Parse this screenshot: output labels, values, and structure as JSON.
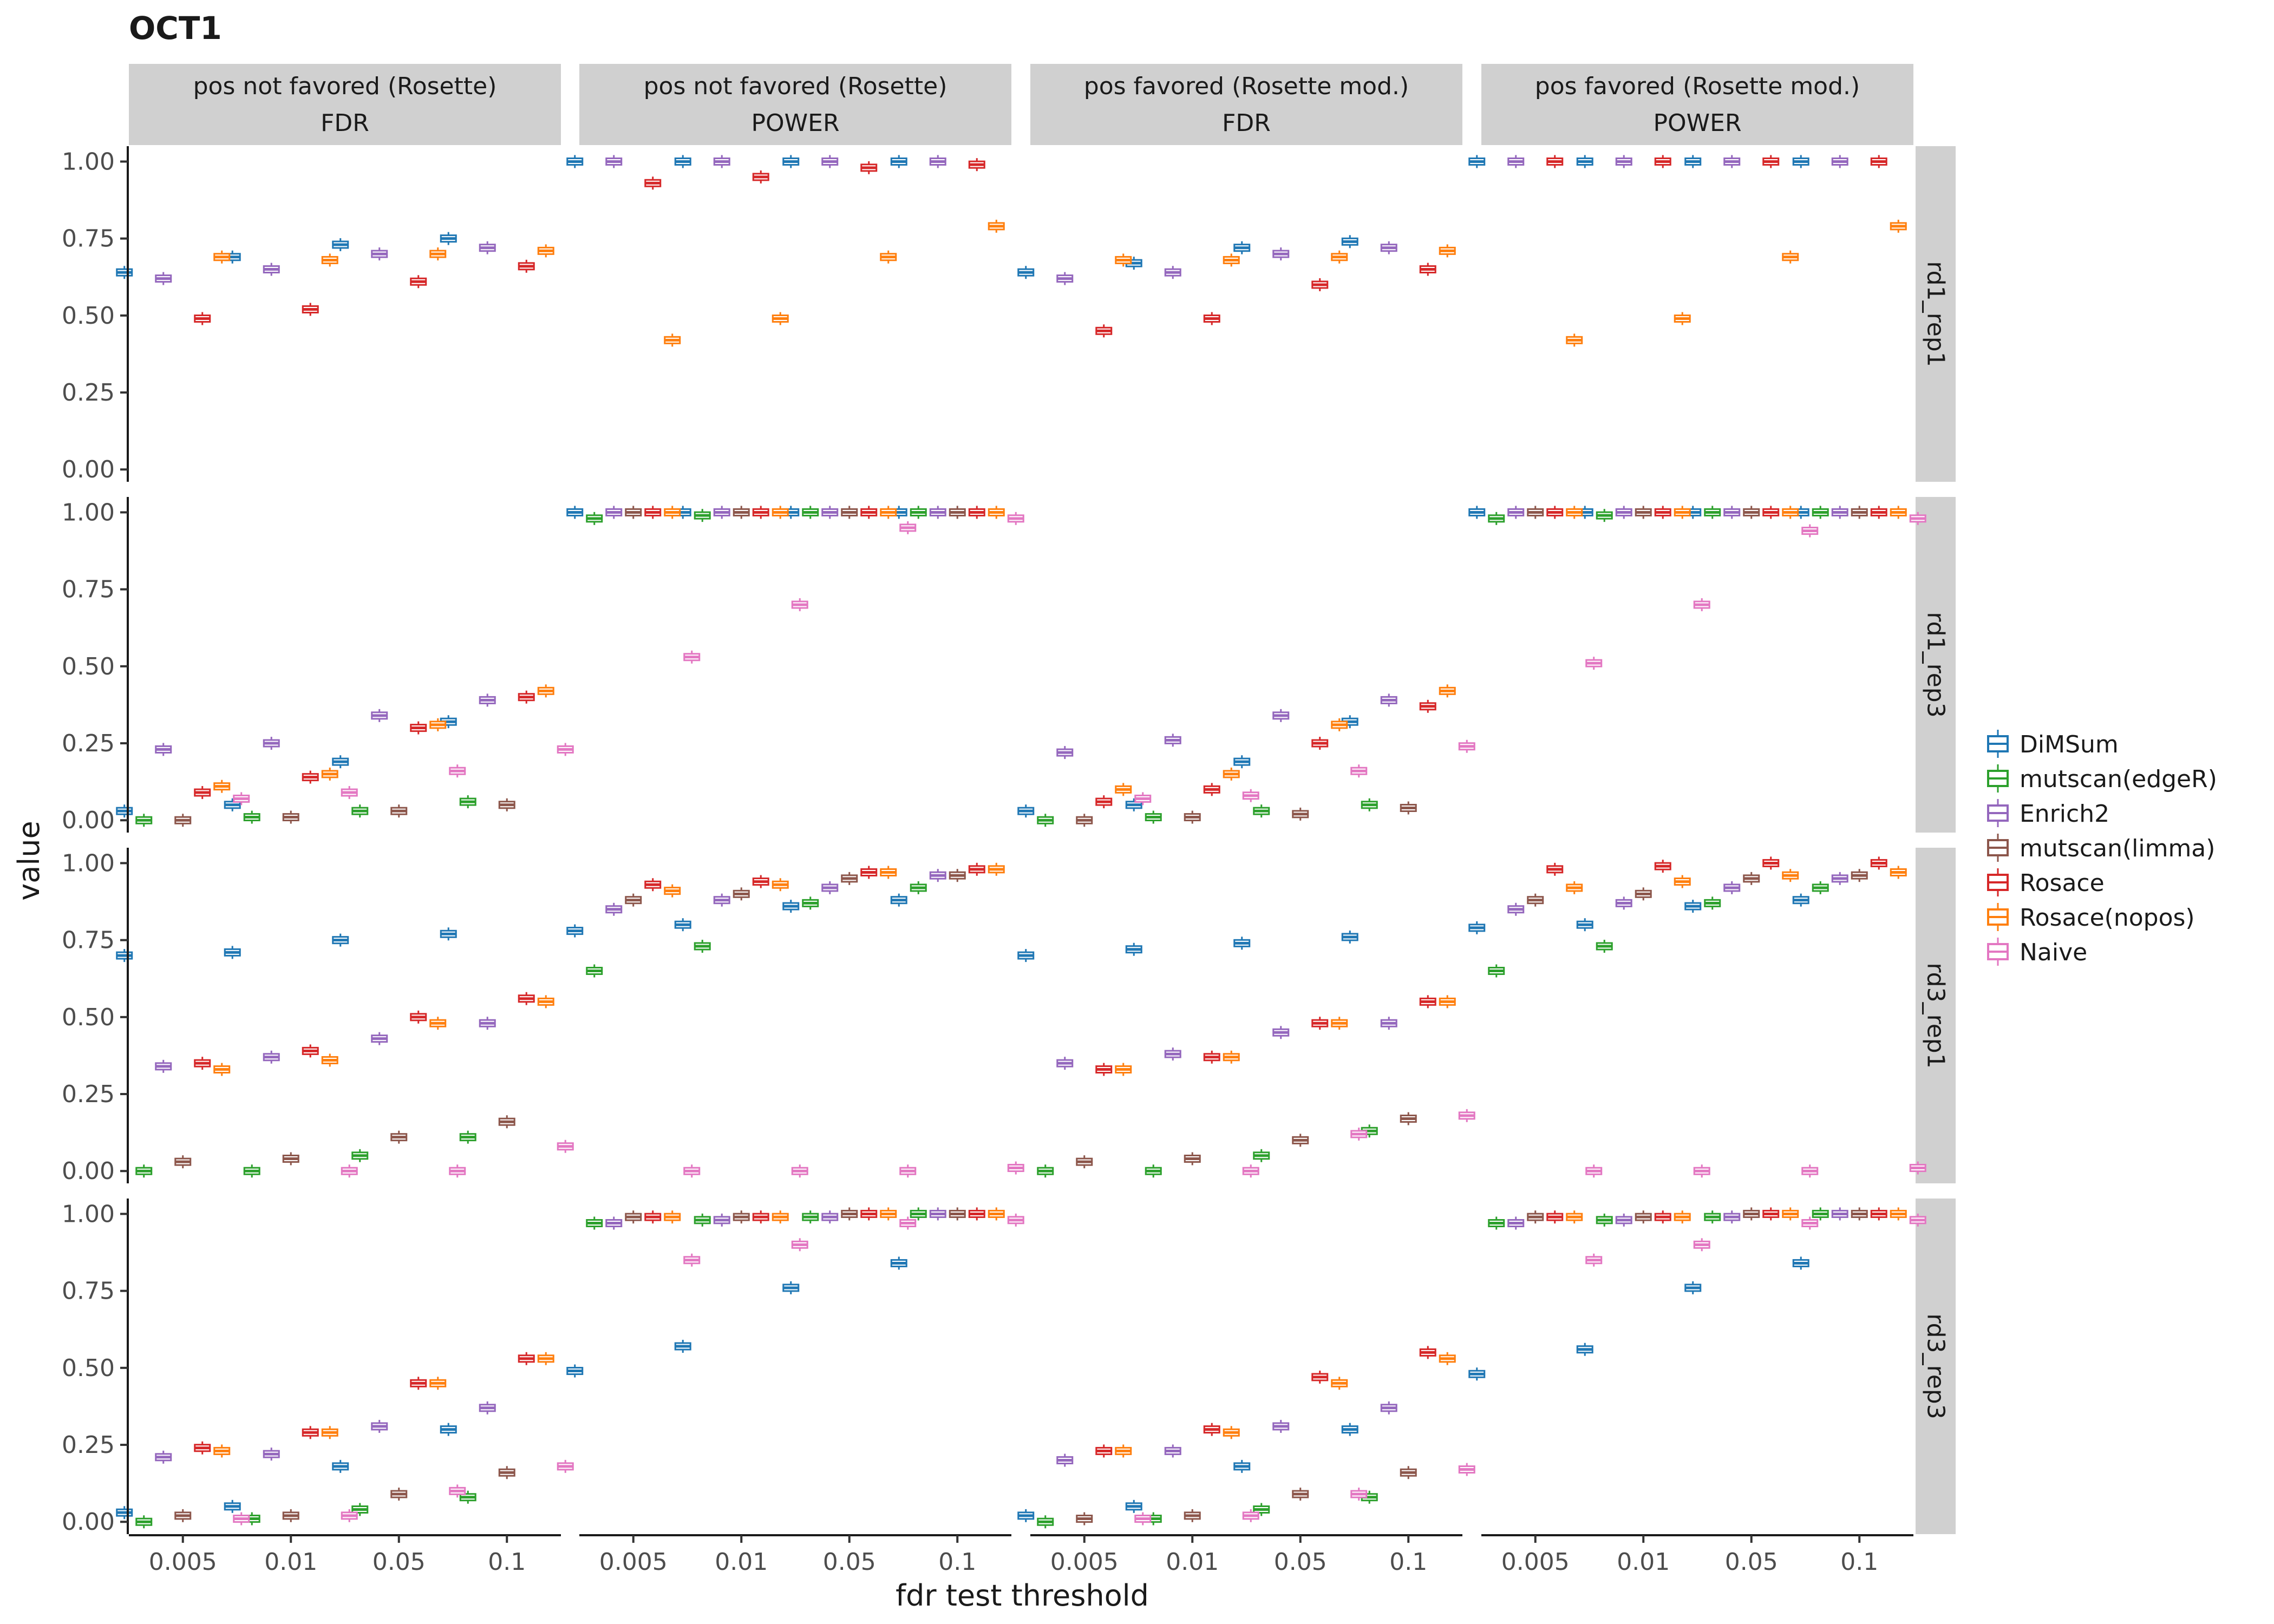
{
  "chart_data": {
    "type": "boxplot",
    "title": "OCT1",
    "xlabel": "fdr test threshold",
    "ylabel": "value",
    "x_categories": [
      "0.005",
      "0.01",
      "0.05",
      "0.1"
    ],
    "y_ticks": [
      "0.00",
      "0.25",
      "0.50",
      "0.75",
      "1.00"
    ],
    "ylim": [
      -0.04,
      1.05
    ],
    "grid": false,
    "legend_position": "right",
    "col_facets": [
      {
        "line1": "pos not favored (Rosette)",
        "line2": "FDR"
      },
      {
        "line1": "pos not favored (Rosette)",
        "line2": "POWER"
      },
      {
        "line1": "pos favored (Rosette mod.)",
        "line2": "FDR"
      },
      {
        "line1": "pos favored (Rosette mod.)",
        "line2": "POWER"
      }
    ],
    "row_facets": [
      "rd1_rep1",
      "rd1_rep3",
      "rd3_rep1",
      "rd3_rep3"
    ],
    "series": [
      {
        "name": "DiMSum",
        "color": "#1f77b4"
      },
      {
        "name": "mutscan(edgeR)",
        "color": "#2ca02c"
      },
      {
        "name": "Enrich2",
        "color": "#9467bd"
      },
      {
        "name": "mutscan(limma)",
        "color": "#8c564b"
      },
      {
        "name": "Rosace",
        "color": "#d62728"
      },
      {
        "name": "Rosace(nopos)",
        "color": "#ff7f0e"
      },
      {
        "name": "Naive",
        "color": "#e377c2"
      }
    ],
    "panels": [
      [
        {
          "row": 0,
          "col": 0,
          "boxes": [
            [
              0.64,
              0.69,
              0.73,
              0.75
            ],
            [
              null,
              null,
              null,
              null
            ],
            [
              0.62,
              0.65,
              0.7,
              0.72
            ],
            [
              null,
              null,
              null,
              null
            ],
            [
              0.49,
              0.52,
              0.61,
              0.66
            ],
            [
              0.69,
              0.68,
              0.7,
              0.71
            ],
            [
              null,
              null,
              null,
              null
            ]
          ]
        },
        {
          "row": 0,
          "col": 1,
          "boxes": [
            [
              1.0,
              1.0,
              1.0,
              1.0
            ],
            [
              null,
              null,
              null,
              null
            ],
            [
              1.0,
              1.0,
              1.0,
              1.0
            ],
            [
              null,
              null,
              null,
              null
            ],
            [
              0.93,
              0.95,
              0.98,
              0.99
            ],
            [
              0.42,
              0.49,
              0.69,
              0.79
            ],
            [
              null,
              null,
              null,
              null
            ]
          ]
        },
        {
          "row": 0,
          "col": 2,
          "boxes": [
            [
              0.64,
              0.67,
              0.72,
              0.74
            ],
            [
              null,
              null,
              null,
              null
            ],
            [
              0.62,
              0.64,
              0.7,
              0.72
            ],
            [
              null,
              null,
              null,
              null
            ],
            [
              0.45,
              0.49,
              0.6,
              0.65
            ],
            [
              0.68,
              0.68,
              0.69,
              0.71
            ],
            [
              null,
              null,
              null,
              null
            ]
          ]
        },
        {
          "row": 0,
          "col": 3,
          "boxes": [
            [
              1.0,
              1.0,
              1.0,
              1.0
            ],
            [
              null,
              null,
              null,
              null
            ],
            [
              1.0,
              1.0,
              1.0,
              1.0
            ],
            [
              null,
              null,
              null,
              null
            ],
            [
              1.0,
              1.0,
              1.0,
              1.0
            ],
            [
              0.42,
              0.49,
              0.69,
              0.79
            ],
            [
              null,
              null,
              null,
              null
            ]
          ]
        }
      ],
      [
        {
          "row": 1,
          "col": 0,
          "boxes": [
            [
              0.03,
              0.05,
              0.19,
              0.32
            ],
            [
              0.0,
              0.01,
              0.03,
              0.06
            ],
            [
              0.23,
              0.25,
              0.34,
              0.39
            ],
            [
              0.0,
              0.01,
              0.03,
              0.05
            ],
            [
              0.09,
              0.14,
              0.3,
              0.4
            ],
            [
              0.11,
              0.15,
              0.31,
              0.42
            ],
            [
              0.07,
              0.09,
              0.16,
              0.23
            ]
          ]
        },
        {
          "row": 1,
          "col": 1,
          "boxes": [
            [
              1.0,
              1.0,
              1.0,
              1.0
            ],
            [
              0.98,
              0.99,
              1.0,
              1.0
            ],
            [
              1.0,
              1.0,
              1.0,
              1.0
            ],
            [
              1.0,
              1.0,
              1.0,
              1.0
            ],
            [
              1.0,
              1.0,
              1.0,
              1.0
            ],
            [
              1.0,
              1.0,
              1.0,
              1.0
            ],
            [
              0.53,
              0.7,
              0.95,
              0.98
            ]
          ]
        },
        {
          "row": 1,
          "col": 2,
          "boxes": [
            [
              0.03,
              0.05,
              0.19,
              0.32
            ],
            [
              0.0,
              0.01,
              0.03,
              0.05
            ],
            [
              0.22,
              0.26,
              0.34,
              0.39
            ],
            [
              0.0,
              0.01,
              0.02,
              0.04
            ],
            [
              0.06,
              0.1,
              0.25,
              0.37
            ],
            [
              0.1,
              0.15,
              0.31,
              0.42
            ],
            [
              0.07,
              0.08,
              0.16,
              0.24
            ]
          ]
        },
        {
          "row": 1,
          "col": 3,
          "boxes": [
            [
              1.0,
              1.0,
              1.0,
              1.0
            ],
            [
              0.98,
              0.99,
              1.0,
              1.0
            ],
            [
              1.0,
              1.0,
              1.0,
              1.0
            ],
            [
              1.0,
              1.0,
              1.0,
              1.0
            ],
            [
              1.0,
              1.0,
              1.0,
              1.0
            ],
            [
              1.0,
              1.0,
              1.0,
              1.0
            ],
            [
              0.51,
              0.7,
              0.94,
              0.98
            ]
          ]
        }
      ],
      [
        {
          "row": 2,
          "col": 0,
          "boxes": [
            [
              0.7,
              0.71,
              0.75,
              0.77
            ],
            [
              0.0,
              0.0,
              0.05,
              0.11
            ],
            [
              0.34,
              0.37,
              0.43,
              0.48
            ],
            [
              0.03,
              0.04,
              0.11,
              0.16
            ],
            [
              0.35,
              0.39,
              0.5,
              0.56
            ],
            [
              0.33,
              0.36,
              0.48,
              0.55
            ],
            [
              null,
              0.0,
              0.0,
              0.08
            ]
          ]
        },
        {
          "row": 2,
          "col": 1,
          "boxes": [
            [
              0.78,
              0.8,
              0.86,
              0.88
            ],
            [
              0.65,
              0.73,
              0.87,
              0.92
            ],
            [
              0.85,
              0.88,
              0.92,
              0.96
            ],
            [
              0.88,
              0.9,
              0.95,
              0.96
            ],
            [
              0.93,
              0.94,
              0.97,
              0.98
            ],
            [
              0.91,
              0.93,
              0.97,
              0.98
            ],
            [
              0.0,
              0.0,
              0.0,
              0.01
            ]
          ]
        },
        {
          "row": 2,
          "col": 2,
          "boxes": [
            [
              0.7,
              0.72,
              0.74,
              0.76
            ],
            [
              0.0,
              0.0,
              0.05,
              0.13
            ],
            [
              0.35,
              0.38,
              0.45,
              0.48
            ],
            [
              0.03,
              0.04,
              0.1,
              0.17
            ],
            [
              0.33,
              0.37,
              0.48,
              0.55
            ],
            [
              0.33,
              0.37,
              0.48,
              0.55
            ],
            [
              null,
              0.0,
              0.12,
              0.18
            ]
          ]
        },
        {
          "row": 2,
          "col": 3,
          "boxes": [
            [
              0.79,
              0.8,
              0.86,
              0.88
            ],
            [
              0.65,
              0.73,
              0.87,
              0.92
            ],
            [
              0.85,
              0.87,
              0.92,
              0.95
            ],
            [
              0.88,
              0.9,
              0.95,
              0.96
            ],
            [
              0.98,
              0.99,
              1.0,
              1.0
            ],
            [
              0.92,
              0.94,
              0.96,
              0.97
            ],
            [
              0.0,
              0.0,
              0.0,
              0.01
            ]
          ]
        }
      ],
      [
        {
          "row": 3,
          "col": 0,
          "boxes": [
            [
              0.03,
              0.05,
              0.18,
              0.3
            ],
            [
              0.0,
              0.01,
              0.04,
              0.08
            ],
            [
              0.21,
              0.22,
              0.31,
              0.37
            ],
            [
              0.02,
              0.02,
              0.09,
              0.16
            ],
            [
              0.24,
              0.29,
              0.45,
              0.53
            ],
            [
              0.23,
              0.29,
              0.45,
              0.53
            ],
            [
              0.01,
              0.02,
              0.1,
              0.18
            ]
          ]
        },
        {
          "row": 3,
          "col": 1,
          "boxes": [
            [
              0.49,
              0.57,
              0.76,
              0.84
            ],
            [
              0.97,
              0.98,
              0.99,
              1.0
            ],
            [
              0.97,
              0.98,
              0.99,
              1.0
            ],
            [
              0.99,
              0.99,
              1.0,
              1.0
            ],
            [
              0.99,
              0.99,
              1.0,
              1.0
            ],
            [
              0.99,
              0.99,
              1.0,
              1.0
            ],
            [
              0.85,
              0.9,
              0.97,
              0.98
            ]
          ]
        },
        {
          "row": 3,
          "col": 2,
          "boxes": [
            [
              0.02,
              0.05,
              0.18,
              0.3
            ],
            [
              0.0,
              0.01,
              0.04,
              0.08
            ],
            [
              0.2,
              0.23,
              0.31,
              0.37
            ],
            [
              0.01,
              0.02,
              0.09,
              0.16
            ],
            [
              0.23,
              0.3,
              0.47,
              0.55
            ],
            [
              0.23,
              0.29,
              0.45,
              0.53
            ],
            [
              0.01,
              0.02,
              0.09,
              0.17
            ]
          ]
        },
        {
          "row": 3,
          "col": 3,
          "boxes": [
            [
              0.48,
              0.56,
              0.76,
              0.84
            ],
            [
              0.97,
              0.98,
              0.99,
              1.0
            ],
            [
              0.97,
              0.98,
              0.99,
              1.0
            ],
            [
              0.99,
              0.99,
              1.0,
              1.0
            ],
            [
              0.99,
              0.99,
              1.0,
              1.0
            ],
            [
              0.99,
              0.99,
              1.0,
              1.0
            ],
            [
              0.85,
              0.9,
              0.97,
              0.98
            ]
          ]
        }
      ]
    ]
  }
}
